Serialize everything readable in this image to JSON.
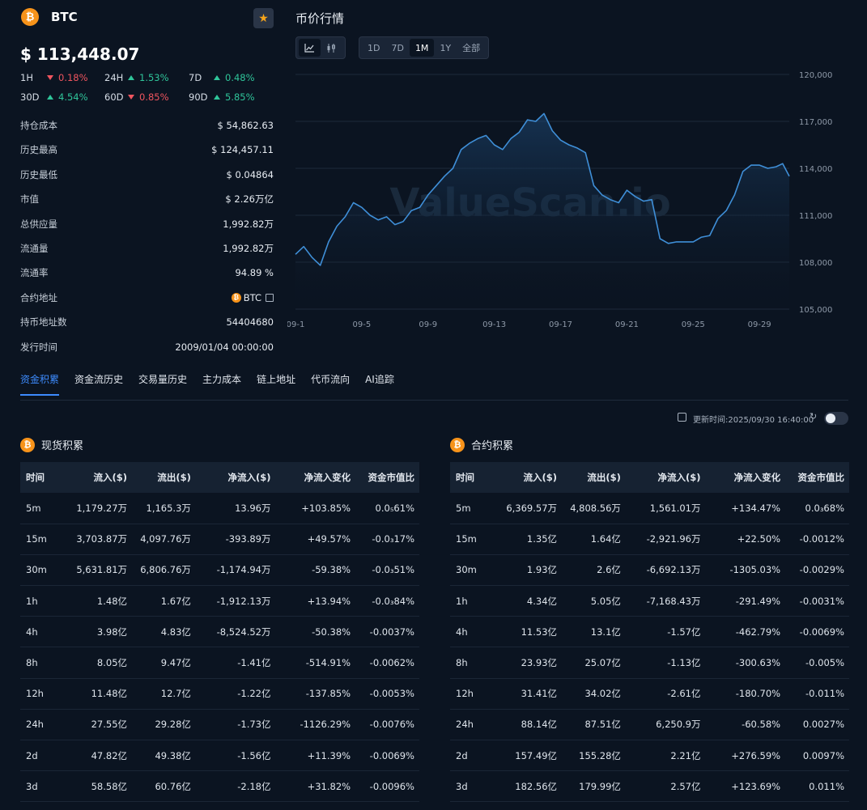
{
  "coin": {
    "icon": "bitcoin-icon",
    "symbol": "BTC",
    "price": "$ 113,448.07",
    "favorite_icon": "star-icon"
  },
  "changes": [
    {
      "label": "1H",
      "value": "0.18%",
      "dir": "down"
    },
    {
      "label": "24H",
      "value": "1.53%",
      "dir": "up"
    },
    {
      "label": "7D",
      "value": "0.48%",
      "dir": "up"
    },
    {
      "label": "30D",
      "value": "4.54%",
      "dir": "up"
    },
    {
      "label": "60D",
      "value": "0.85%",
      "dir": "down"
    },
    {
      "label": "90D",
      "value": "5.85%",
      "dir": "up"
    }
  ],
  "info": [
    {
      "label": "持仓成本",
      "value": "$ 54,862.63"
    },
    {
      "label": "历史最高",
      "value": "$ 124,457.11"
    },
    {
      "label": "历史最低",
      "value": "$ 0.04864"
    },
    {
      "label": "市值",
      "value": "$ 2.26万亿"
    },
    {
      "label": "总供应量",
      "value": "1,992.82万"
    },
    {
      "label": "流通量",
      "value": "1,992.82万"
    },
    {
      "label": "流通率",
      "value": "94.89 %"
    },
    {
      "label": "合约地址",
      "value": "BTC"
    },
    {
      "label": "持币地址数",
      "value": "54404680"
    },
    {
      "label": "发行时间",
      "value": "2009/01/04 00:00:00"
    }
  ],
  "chart_panel": {
    "title": "币价行情",
    "view_icons": [
      "line-chart-icon",
      "candlestick-icon"
    ],
    "ranges": [
      "1D",
      "7D",
      "1M",
      "1Y",
      "全部"
    ],
    "active_range": "1M",
    "watermark": "ValueScan.io"
  },
  "chart_data": {
    "type": "area",
    "x_ticks": [
      "09-1",
      "09-5",
      "09-9",
      "09-13",
      "09-17",
      "09-21",
      "09-25",
      "09-29"
    ],
    "y_ticks": [
      "120,000",
      "117,000",
      "114,000",
      "111,000",
      "108,000",
      "105,000"
    ],
    "ylim": [
      105000,
      120000
    ],
    "line_color": "#3f8fd8",
    "x": [
      0,
      0.5,
      1,
      1.5,
      2,
      2.5,
      3,
      3.5,
      4,
      4.5,
      5,
      5.5,
      6,
      6.5,
      7,
      7.5,
      8,
      8.5,
      9,
      9.5,
      10,
      10.5,
      11,
      11.5,
      12,
      12.5,
      13,
      13.5,
      14,
      14.5,
      15,
      15.5,
      16,
      16.5,
      17,
      17.5,
      18,
      18.5,
      19,
      19.5,
      20,
      20.5,
      21,
      21.5,
      22,
      22.5,
      23,
      23.5,
      24,
      24.5,
      25,
      25.5,
      26,
      26.5,
      27,
      27.5,
      28,
      28.5,
      29,
      29.4,
      29.8
    ],
    "y": [
      108500,
      109000,
      108300,
      107800,
      109300,
      110300,
      110900,
      111800,
      111500,
      111000,
      110700,
      110900,
      110400,
      110600,
      111300,
      111500,
      112300,
      112900,
      113500,
      114000,
      115200,
      115600,
      115900,
      116100,
      115500,
      115200,
      115900,
      116300,
      117100,
      117000,
      117500,
      116400,
      115800,
      115500,
      115300,
      115000,
      112900,
      112300,
      112000,
      111800,
      112600,
      112200,
      111900,
      112000,
      109500,
      109200,
      109300,
      109300,
      109300,
      109600,
      109700,
      110800,
      111300,
      112300,
      113800,
      114200,
      114200,
      114000,
      114100,
      114300,
      113500
    ]
  },
  "tabs": [
    "资金积累",
    "资金流历史",
    "交易量历史",
    "主力成本",
    "链上地址",
    "代币流向",
    "AI追踪"
  ],
  "active_tab": "资金积累",
  "update": {
    "text": "更新时间:2025/09/30 16:40:00",
    "copy_icon": "copy-icon",
    "refresh_icon": "refresh-icon"
  },
  "spot": {
    "title": "现货积累",
    "columns": [
      "时间",
      "流入($)",
      "流出($)",
      "净流入($)",
      "净流入变化",
      "资金市值比"
    ],
    "rows": [
      {
        "cells": [
          "5m",
          "1,179.27万",
          "1,165.3万",
          "13.96万",
          "+103.85%",
          "0.0₅61%"
        ],
        "signs": [
          "up",
          "up",
          "up"
        ]
      },
      {
        "cells": [
          "15m",
          "3,703.87万",
          "4,097.76万",
          "-393.89万",
          "+49.57%",
          "-0.0₃17%"
        ],
        "signs": [
          "down",
          "up",
          "down"
        ]
      },
      {
        "cells": [
          "30m",
          "5,631.81万",
          "6,806.76万",
          "-1,174.94万",
          "-59.38%",
          "-0.0₃51%"
        ],
        "signs": [
          "down",
          "down",
          "down"
        ]
      },
      {
        "cells": [
          "1h",
          "1.48亿",
          "1.67亿",
          "-1,912.13万",
          "+13.94%",
          "-0.0₃84%"
        ],
        "signs": [
          "down",
          "up",
          "down"
        ]
      },
      {
        "cells": [
          "4h",
          "3.98亿",
          "4.83亿",
          "-8,524.52万",
          "-50.38%",
          "-0.0037%"
        ],
        "signs": [
          "down",
          "down",
          "down"
        ]
      },
      {
        "cells": [
          "8h",
          "8.05亿",
          "9.47亿",
          "-1.41亿",
          "-514.91%",
          "-0.0062%"
        ],
        "signs": [
          "down",
          "down",
          "down"
        ]
      },
      {
        "cells": [
          "12h",
          "11.48亿",
          "12.7亿",
          "-1.22亿",
          "-137.85%",
          "-0.0053%"
        ],
        "signs": [
          "down",
          "down",
          "down"
        ]
      },
      {
        "cells": [
          "24h",
          "27.55亿",
          "29.28亿",
          "-1.73亿",
          "-1126.29%",
          "-0.0076%"
        ],
        "signs": [
          "down",
          "down",
          "down"
        ]
      },
      {
        "cells": [
          "2d",
          "47.82亿",
          "49.38亿",
          "-1.56亿",
          "+11.39%",
          "-0.0069%"
        ],
        "signs": [
          "down",
          "up",
          "down"
        ]
      },
      {
        "cells": [
          "3d",
          "58.58亿",
          "60.76亿",
          "-2.18亿",
          "+31.82%",
          "-0.0096%"
        ],
        "signs": [
          "down",
          "up",
          "down"
        ]
      }
    ]
  },
  "futures": {
    "title": "合约积累",
    "columns": [
      "时间",
      "流入($)",
      "流出($)",
      "净流入($)",
      "净流入变化",
      "资金市值比"
    ],
    "rows": [
      {
        "cells": [
          "5m",
          "6,369.57万",
          "4,808.56万",
          "1,561.01万",
          "+134.47%",
          "0.0₃68%"
        ],
        "signs": [
          "up",
          "up",
          "up"
        ]
      },
      {
        "cells": [
          "15m",
          "1.35亿",
          "1.64亿",
          "-2,921.96万",
          "+22.50%",
          "-0.0012%"
        ],
        "signs": [
          "down",
          "up",
          "down"
        ]
      },
      {
        "cells": [
          "30m",
          "1.93亿",
          "2.6亿",
          "-6,692.13万",
          "-1305.03%",
          "-0.0029%"
        ],
        "signs": [
          "down",
          "down",
          "down"
        ]
      },
      {
        "cells": [
          "1h",
          "4.34亿",
          "5.05亿",
          "-7,168.43万",
          "-291.49%",
          "-0.0031%"
        ],
        "signs": [
          "down",
          "down",
          "down"
        ]
      },
      {
        "cells": [
          "4h",
          "11.53亿",
          "13.1亿",
          "-1.57亿",
          "-462.79%",
          "-0.0069%"
        ],
        "signs": [
          "down",
          "down",
          "down"
        ]
      },
      {
        "cells": [
          "8h",
          "23.93亿",
          "25.07亿",
          "-1.13亿",
          "-300.63%",
          "-0.005%"
        ],
        "signs": [
          "down",
          "down",
          "down"
        ]
      },
      {
        "cells": [
          "12h",
          "31.41亿",
          "34.02亿",
          "-2.61亿",
          "-180.70%",
          "-0.011%"
        ],
        "signs": [
          "down",
          "down",
          "down"
        ]
      },
      {
        "cells": [
          "24h",
          "88.14亿",
          "87.51亿",
          "6,250.9万",
          "-60.58%",
          "0.0027%"
        ],
        "signs": [
          "up",
          "down",
          "up"
        ]
      },
      {
        "cells": [
          "2d",
          "157.49亿",
          "155.28亿",
          "2.21亿",
          "+276.59%",
          "0.0097%"
        ],
        "signs": [
          "up",
          "up",
          "up"
        ]
      },
      {
        "cells": [
          "3d",
          "182.56亿",
          "179.99亿",
          "2.57亿",
          "+123.69%",
          "0.011%"
        ],
        "signs": [
          "up",
          "up",
          "up"
        ]
      }
    ]
  }
}
